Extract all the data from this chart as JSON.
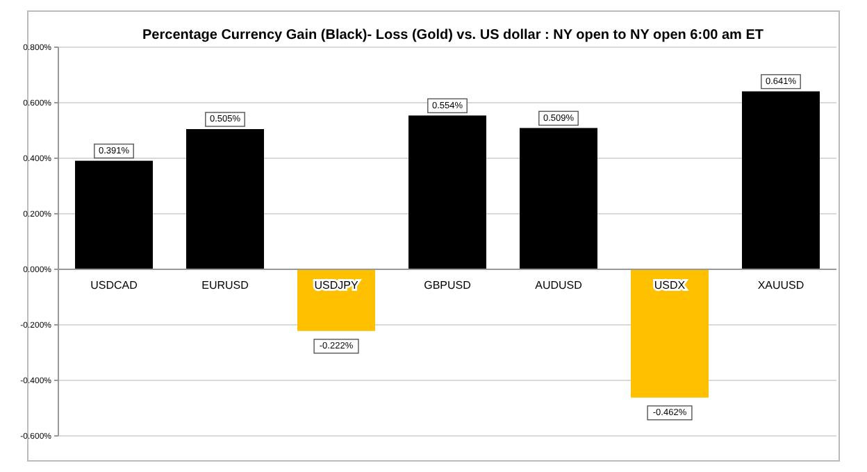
{
  "chart_data": {
    "type": "bar",
    "title": "Percentage Currency  Gain (Black)- Loss (Gold)  vs. US dollar :  NY open  to  NY open  6:00 am ET",
    "categories": [
      "USDCAD",
      "EURUSD",
      "USDJPY",
      "GBPUSD",
      "AUDUSD",
      "USDX",
      "XAUUSD"
    ],
    "values": [
      0.391,
      0.505,
      -0.222,
      0.554,
      0.509,
      -0.462,
      0.641
    ],
    "colors": [
      "#000000",
      "#000000",
      "#ffc000",
      "#000000",
      "#000000",
      "#ffc000",
      "#000000"
    ],
    "value_labels": [
      "0.391%",
      "0.505%",
      "-0.222%",
      "0.554%",
      "0.509%",
      "-0.462%",
      "0.641%"
    ],
    "ylim": [
      -0.6,
      0.8
    ],
    "yticks": [
      {
        "value": -0.6,
        "label": "-0.600%"
      },
      {
        "value": -0.4,
        "label": "-0.400%"
      },
      {
        "value": -0.2,
        "label": "-0.200%"
      },
      {
        "value": 0,
        "label": "0.000%"
      },
      {
        "value": 0.2,
        "label": "0.200%"
      },
      {
        "value": 0.4,
        "label": "0.400%"
      },
      {
        "value": 0.6,
        "label": "0.600%"
      },
      {
        "value": 0.8,
        "label": "0.800%"
      }
    ],
    "grid": "y"
  }
}
